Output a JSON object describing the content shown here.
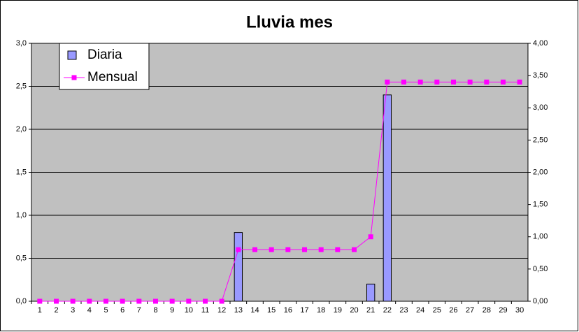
{
  "chart_data": {
    "type": "bar",
    "title": "Lluvia mes",
    "categories": [
      "1",
      "2",
      "3",
      "4",
      "5",
      "6",
      "7",
      "8",
      "9",
      "10",
      "11",
      "12",
      "13",
      "14",
      "15",
      "16",
      "17",
      "18",
      "19",
      "20",
      "21",
      "22",
      "23",
      "24",
      "25",
      "26",
      "27",
      "28",
      "29",
      "30"
    ],
    "series": [
      {
        "name": "Diaria",
        "type": "bar",
        "color": "#9999ff",
        "values": [
          0,
          0,
          0,
          0,
          0,
          0,
          0,
          0,
          0,
          0,
          0,
          0,
          0.8,
          0,
          0,
          0,
          0,
          0,
          0,
          0,
          0.2,
          2.4,
          0,
          0,
          0,
          0,
          0,
          0,
          0,
          0
        ]
      },
      {
        "name": "Mensual",
        "type": "line",
        "axis": "y2",
        "color": "#ff00ff",
        "values": [
          0,
          0,
          0,
          0,
          0,
          0,
          0,
          0,
          0,
          0,
          0,
          0,
          0.8,
          0.8,
          0.8,
          0.8,
          0.8,
          0.8,
          0.8,
          0.8,
          1.0,
          3.4,
          3.4,
          3.4,
          3.4,
          3.4,
          3.4,
          3.4,
          3.4,
          3.4
        ]
      }
    ],
    "ylim": [
      0,
      3
    ],
    "yticks": [
      {
        "value": 0,
        "label": "0,0"
      },
      {
        "value": 0.5,
        "label": "0,5"
      },
      {
        "value": 1,
        "label": "1,0"
      },
      {
        "value": 1.5,
        "label": "1,5"
      },
      {
        "value": 2,
        "label": "2,0"
      },
      {
        "value": 2.5,
        "label": "2,5"
      },
      {
        "value": 3,
        "label": "3,0"
      }
    ],
    "y2lim": [
      0,
      4
    ],
    "y2ticks": [
      {
        "value": 0,
        "label": "0,00"
      },
      {
        "value": 0.5,
        "label": "0,50"
      },
      {
        "value": 1,
        "label": "1,00"
      },
      {
        "value": 1.5,
        "label": "1,50"
      },
      {
        "value": 2,
        "label": "2,00"
      },
      {
        "value": 2.5,
        "label": "2,50"
      },
      {
        "value": 3,
        "label": "3,00"
      },
      {
        "value": 3.5,
        "label": "3,50"
      },
      {
        "value": 4,
        "label": "4,00"
      }
    ],
    "grid": true,
    "plot_background": "#c0c0c0",
    "legend": "top-left"
  }
}
